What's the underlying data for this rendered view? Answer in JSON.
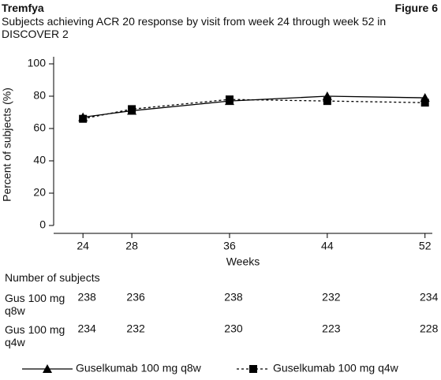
{
  "header": {
    "brand": "Tremfya",
    "figure": "Figure 6"
  },
  "chart_data": {
    "type": "line",
    "title": "Subjects achieving ACR 20 response by visit from week 24 through week 52 in DISCOVER 2",
    "y_label": "Percent of subjects (%)",
    "x_label": "Weeks",
    "x": [
      24,
      28,
      36,
      44,
      52
    ],
    "xlim": [
      21.6,
      52.6
    ],
    "xticks": [
      24,
      28,
      36,
      44,
      52
    ],
    "ylim": [
      0,
      100
    ],
    "yticks": [
      0,
      20,
      40,
      60,
      80,
      100
    ],
    "series": [
      {
        "name": "Guselkumab 100 mg q8w",
        "color": "#000000",
        "line_style": "solid",
        "marker": "triangle",
        "values": [
          67,
          71,
          77,
          80,
          79
        ]
      },
      {
        "name": "Guselkumab 100 mg q4w",
        "color": "#000000",
        "line_style": "dashed",
        "marker": "square",
        "values": [
          66,
          72,
          78,
          77,
          76
        ]
      }
    ]
  },
  "table": {
    "title": "Number of subjects",
    "rows": [
      {
        "label": "Gus 100 mg q8w",
        "values": [
          238,
          236,
          238,
          232,
          234
        ]
      },
      {
        "label": "Gus 100 mg q4w",
        "values": [
          234,
          232,
          230,
          223,
          228
        ]
      }
    ]
  }
}
